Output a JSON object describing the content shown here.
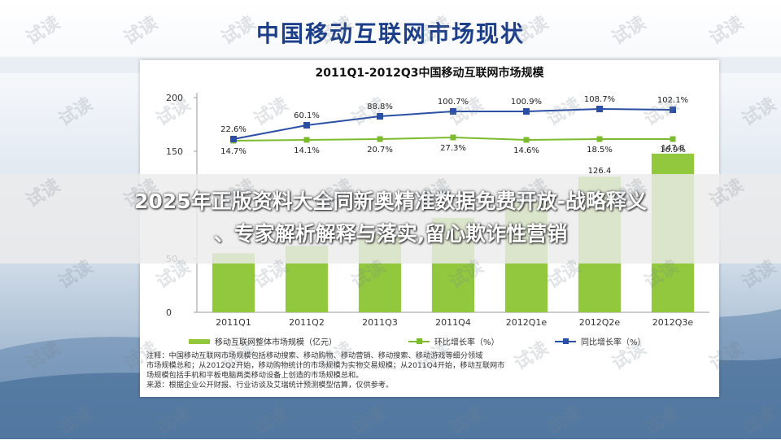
{
  "slide": {
    "title": "中国移动互联网市场现状"
  },
  "banner": {
    "line1": "2025年正版资料大全同新奥精准数据免费开放-战略释义",
    "line2": "、专家解析解释与落实,留心欺诈性营销"
  },
  "watermark": "试读",
  "colors": {
    "bar": "#92c83e",
    "green_line": "#7dbb2e",
    "blue_line": "#2c4fa6",
    "title": "#1d3f8a"
  },
  "chart_data": {
    "type": "bar",
    "title": "2011Q1-2012Q3中国移动互联网市场规模",
    "categories": [
      "2011Q1",
      "2011Q2",
      "2011Q3",
      "2011Q4",
      "2012Q1e",
      "2012Q2e",
      "2012Q3e"
    ],
    "ylim": [
      0,
      200
    ],
    "yticks": [
      "0",
      "50",
      "100",
      "150",
      "200"
    ],
    "series": [
      {
        "name": "移动互联网整体市场规模（亿元）",
        "kind": "bar",
        "values": [
          55,
          62,
          72,
          88,
          104,
          126.4,
          147.8
        ],
        "labels": [
          "",
          "",
          "",
          "",
          "",
          "126.4",
          "147.8"
        ]
      },
      {
        "name": "环比增长率（%）",
        "kind": "line",
        "labels": [
          "14.7%",
          "14.1%",
          "20.7%",
          "27.3%",
          "14.6%",
          "18.5%",
          "16.9%"
        ]
      },
      {
        "name": "同比增长率（%）",
        "kind": "line",
        "labels": [
          "22.6%",
          "60.1%",
          "88.8%",
          "100.7%",
          "100.9%",
          "108.7%",
          "102.1%"
        ]
      }
    ],
    "notes": [
      "注释：中国移动互联网市场规模包括移动搜索、移动购物、移动营销、移动搜索、移动游戏等细分领域",
      "市场规模总和；从2012Q2开始，移动购物统计的市场规模为实物交易规模；从2011Q4开始，移动互联网市",
      "场规模包括手机和平板电脑两类移动设备上创造的市场规模总和。",
      "来源：根据企业公开财报、行业访谈及艾瑞统计预测模型估算，仅供参考。"
    ]
  }
}
